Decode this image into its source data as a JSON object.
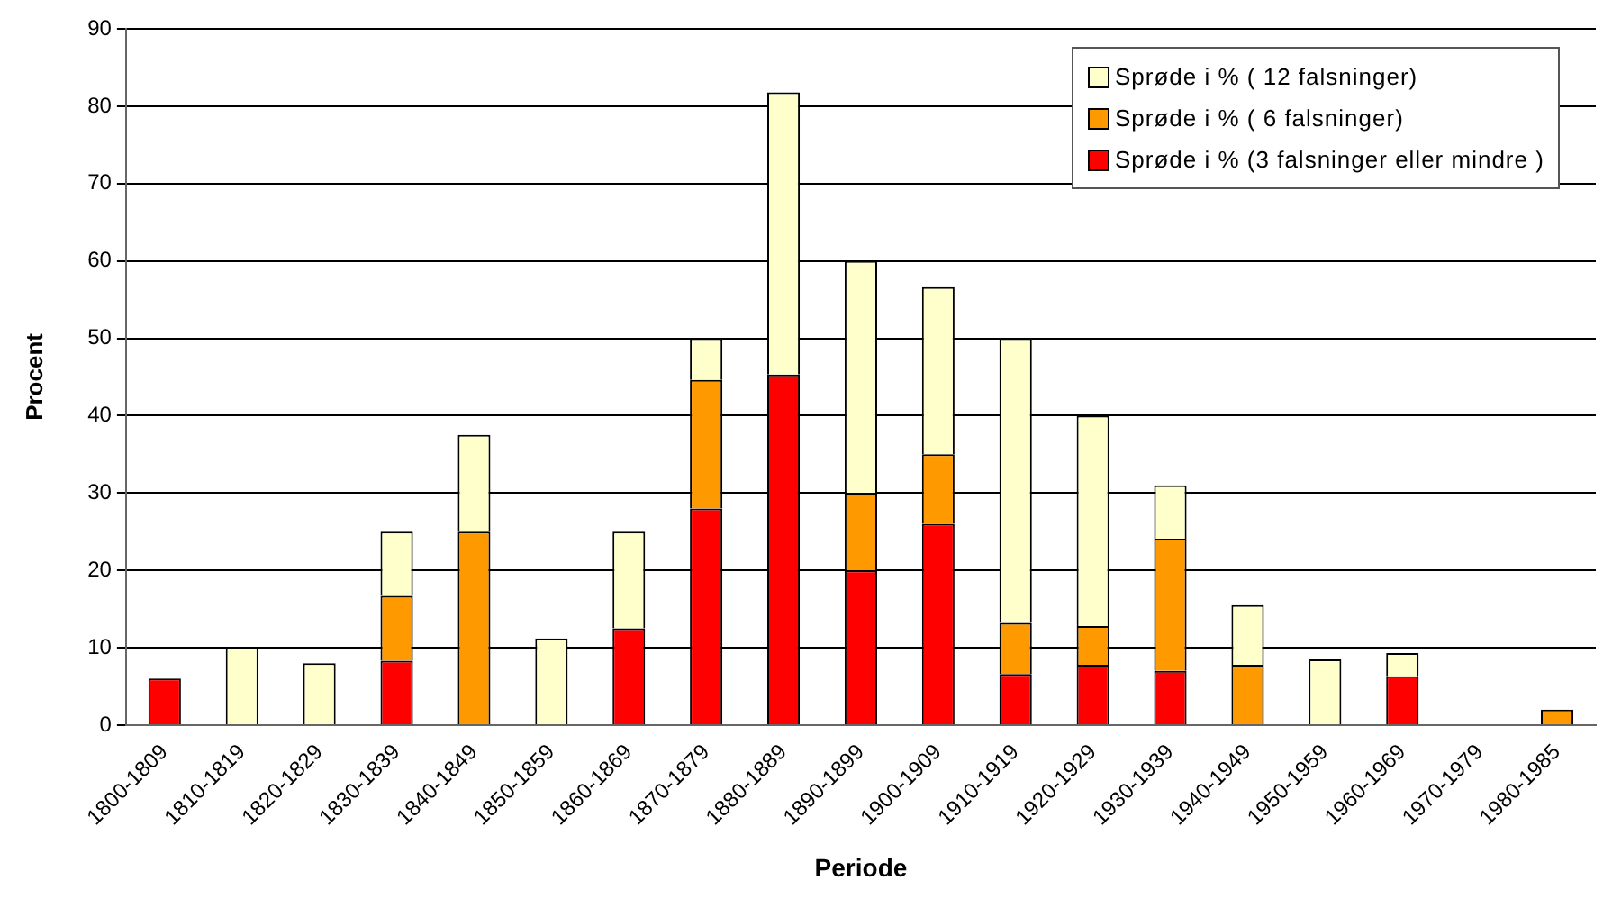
{
  "chart_data": {
    "type": "bar",
    "stacked": true,
    "xlabel": "Periode",
    "ylabel": "Procent",
    "categories": [
      "1800-1809",
      "1810-1819",
      "1820-1829",
      "1830-1839",
      "1840-1849",
      "1850-1859",
      "1860-1869",
      "1870-1879",
      "1880-1889",
      "1890-1899",
      "1900-1909",
      "1910-1919",
      "1920-1929",
      "1930-1939",
      "1940-1949",
      "1950-1959",
      "1960-1969",
      "1970-1979",
      "1980-1985"
    ],
    "series": [
      {
        "name": "Sprøde i % (3 falsninger eller mindre )",
        "color": "#ff0000",
        "values": [
          6,
          null,
          null,
          8.3,
          null,
          null,
          12.5,
          28,
          45.3,
          20,
          26,
          6.6,
          7.8,
          7,
          null,
          null,
          6.3,
          null,
          null
        ]
      },
      {
        "name": "Sprøde i % ( 6 falsninger)",
        "color": "#ff9900",
        "values": [
          null,
          null,
          null,
          8.4,
          25,
          null,
          null,
          16.6,
          null,
          10,
          9,
          6.6,
          5,
          17.1,
          7.8,
          null,
          null,
          null,
          2
        ]
      },
      {
        "name": "Sprøde i % ( 12 falsninger)",
        "color": "#ffffcc",
        "values": [
          null,
          10,
          8,
          8.3,
          12.5,
          11.2,
          12.5,
          5.4,
          36.5,
          30,
          21.6,
          36.8,
          27.2,
          6.9,
          7.7,
          8.5,
          3,
          null,
          null
        ]
      }
    ],
    "ylim": [
      0,
      90
    ],
    "yticks": [
      0,
      10,
      20,
      30,
      40,
      50,
      60,
      70,
      80,
      90
    ],
    "grid": "y",
    "legend": "top right"
  }
}
